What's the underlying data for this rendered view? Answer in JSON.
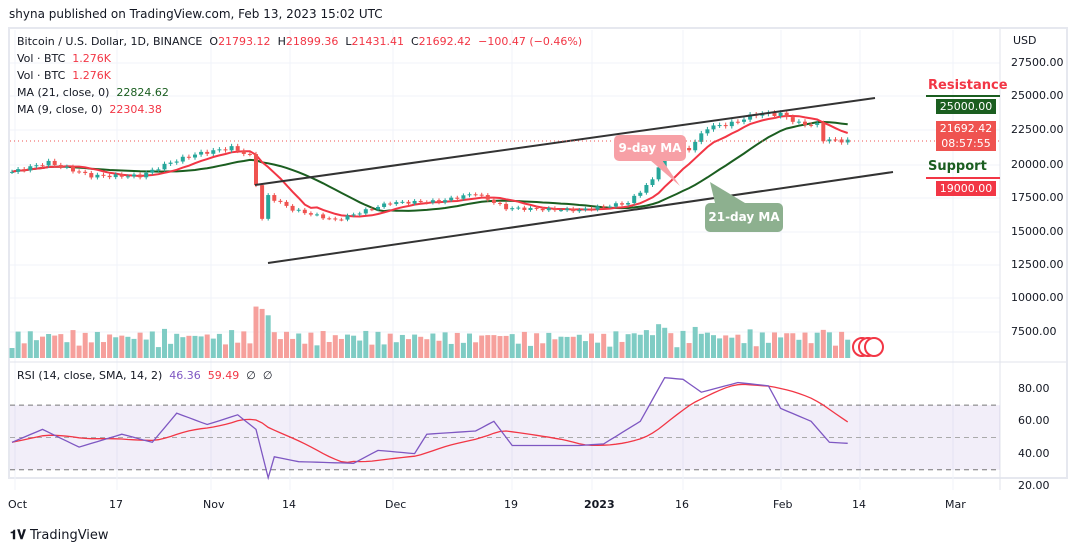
{
  "publisher_line": "shyna published on TradingView.com, Feb 13, 2023 15:02 UTC",
  "header": {
    "symbol": "Bitcoin / U.S. Dollar, 1D, BINANCE",
    "o_label": "O",
    "open": "21793.12",
    "h_label": "H",
    "high": "21899.36",
    "l_label": "L",
    "low": "21431.41",
    "c_label": "C",
    "close": "21692.42",
    "change": "−100.47 (−0.46%)"
  },
  "indicators": {
    "vol1_label": "Vol · BTC",
    "vol1_value": "1.276K",
    "vol2_label": "Vol · BTC",
    "vol2_value": "1.276K",
    "ma21_label": "MA (21, close, 0)",
    "ma21_value": "22824.62",
    "ma9_label": "MA (9, close, 0)",
    "ma9_value": "22304.38",
    "rsi_label": "RSI (14, close, SMA, 14, 2)",
    "rsi_value": "46.36",
    "rsi_sma_value": "59.49",
    "rsi_extra1": "∅",
    "rsi_extra2": "∅"
  },
  "price_axis": {
    "currency": "USD",
    "ticks": [
      "27500.00",
      "25000.00",
      "22500.00",
      "20000.00",
      "17500.00",
      "15000.00",
      "12500.00",
      "10000.00",
      "7500.00"
    ],
    "last_price": "21692.42",
    "countdown": "08:57:55",
    "resistance_tag": "25000.00",
    "support_tag": "19000.00"
  },
  "rsi_axis": {
    "ticks": [
      "80.00",
      "60.00",
      "40.00",
      "20.00"
    ]
  },
  "time_axis": [
    "Oct",
    "17",
    "Nov",
    "14",
    "Dec",
    "19",
    "2023",
    "16",
    "Feb",
    "14",
    "Mar"
  ],
  "annotations": {
    "resistance": "Resistance",
    "support": "Support",
    "ma9": "9-day MA",
    "ma21": "21-day MA"
  },
  "footer": {
    "brand": "TradingView"
  },
  "colors": {
    "up": "#26a69a",
    "down": "#ef5350",
    "ma9": "#f23645",
    "ma21": "#1b5e20",
    "rsi": "#7e57c2",
    "rsi_sma": "#f23645"
  },
  "chart_data": {
    "type": "candlestick",
    "title": "Bitcoin / U.S. Dollar, 1D, BINANCE",
    "ylim": [
      6000,
      28500
    ],
    "close_keypoints": [
      [
        "2022-09-29",
        19400
      ],
      [
        "2022-10-05",
        20100
      ],
      [
        "2022-10-12",
        19100
      ],
      [
        "2022-10-20",
        19100
      ],
      [
        "2022-10-25",
        20100
      ],
      [
        "2022-10-29",
        20700
      ],
      [
        "2022-11-04",
        21200
      ],
      [
        "2022-11-07",
        20600
      ],
      [
        "2022-11-08",
        18500
      ],
      [
        "2022-11-09",
        15900
      ],
      [
        "2022-11-10",
        17600
      ],
      [
        "2022-11-14",
        16600
      ],
      [
        "2022-11-21",
        15800
      ],
      [
        "2022-11-30",
        17100
      ],
      [
        "2022-12-08",
        17200
      ],
      [
        "2022-12-14",
        17800
      ],
      [
        "2022-12-19",
        16700
      ],
      [
        "2022-12-31",
        16550
      ],
      [
        "2023-01-08",
        17100
      ],
      [
        "2023-01-12",
        18800
      ],
      [
        "2023-01-14",
        20900
      ],
      [
        "2023-01-18",
        21100
      ],
      [
        "2023-01-21",
        22700
      ],
      [
        "2023-01-25",
        23000
      ],
      [
        "2023-01-29",
        23700
      ],
      [
        "2023-02-02",
        23700
      ],
      [
        "2023-02-05",
        23000
      ],
      [
        "2023-02-08",
        22900
      ],
      [
        "2023-02-09",
        21800
      ],
      [
        "2023-02-13",
        21690
      ]
    ],
    "rsi_keypoints": [
      [
        "2022-09-29",
        47
      ],
      [
        "2022-10-04",
        55
      ],
      [
        "2022-10-10",
        44
      ],
      [
        "2022-10-17",
        52
      ],
      [
        "2022-10-22",
        47
      ],
      [
        "2022-10-26",
        65
      ],
      [
        "2022-10-31",
        58
      ],
      [
        "2022-11-05",
        64
      ],
      [
        "2022-11-08",
        55
      ],
      [
        "2022-11-10",
        25
      ],
      [
        "2022-11-11",
        38
      ],
      [
        "2022-11-15",
        35
      ],
      [
        "2022-11-24",
        34
      ],
      [
        "2022-11-28",
        42
      ],
      [
        "2022-12-04",
        40
      ],
      [
        "2022-12-06",
        52
      ],
      [
        "2022-12-14",
        54
      ],
      [
        "2022-12-17",
        60
      ],
      [
        "2022-12-20",
        45
      ],
      [
        "2022-12-31",
        45
      ],
      [
        "2023-01-04",
        46
      ],
      [
        "2023-01-10",
        60
      ],
      [
        "2023-01-14",
        87
      ],
      [
        "2023-01-17",
        86
      ],
      [
        "2023-01-20",
        78
      ],
      [
        "2023-01-26",
        84
      ],
      [
        "2023-01-31",
        82
      ],
      [
        "2023-02-02",
        68
      ],
      [
        "2023-02-07",
        60
      ],
      [
        "2023-02-10",
        47
      ],
      [
        "2023-02-13",
        46.36
      ]
    ],
    "rsi_sma_last": 59.49,
    "rsi_bands": [
      30,
      50,
      70
    ],
    "resistance": 25000,
    "support": 19000
  }
}
